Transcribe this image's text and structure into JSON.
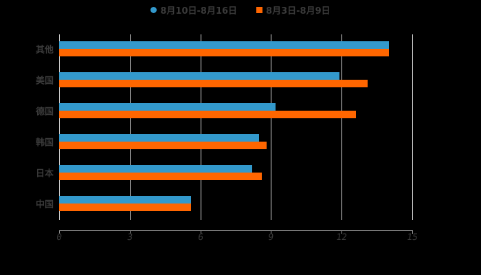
{
  "chart_data": {
    "type": "bar",
    "orientation": "horizontal",
    "title": "",
    "xlabel": "",
    "ylabel": "",
    "categories": [
      "其他",
      "美国",
      "德国",
      "韩国",
      "日本",
      "中国"
    ],
    "series": [
      {
        "name": "8月10日-8月16日",
        "color": "#3399cc",
        "values": [
          14.0,
          11.9,
          9.2,
          8.5,
          8.2,
          5.6
        ]
      },
      {
        "name": "8月3日-8月9日",
        "color": "#ff6600",
        "values": [
          14.0,
          13.1,
          12.6,
          8.8,
          8.6,
          5.6
        ]
      }
    ],
    "xlim": [
      0,
      15
    ],
    "xticks": [
      "0",
      "3",
      "6",
      "9",
      "12",
      "15"
    ],
    "grid": true,
    "legend_position": "top"
  },
  "legend": [
    {
      "label": "8月10日-8月16日",
      "color": "#3399cc",
      "marker": "circle"
    },
    {
      "label": "8月3日-8月9日",
      "color": "#ff6600",
      "marker": "square"
    }
  ]
}
